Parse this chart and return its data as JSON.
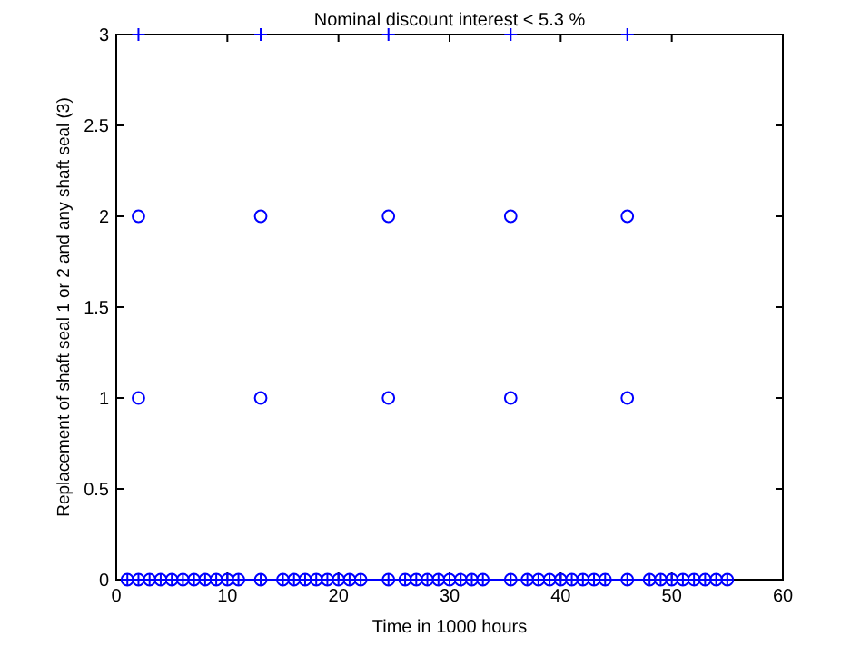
{
  "chart_data": {
    "type": "scatter",
    "title": "Nominal discount interest < 5.3 %",
    "xlabel": "Time in 1000 hours",
    "ylabel": "Replacement of shaft seal 1 or 2 and any shaft seal (3)",
    "xlim": [
      0,
      60
    ],
    "xticks": [
      0,
      10,
      20,
      30,
      40,
      50,
      60
    ],
    "ylim": [
      0,
      3
    ],
    "yticks": [
      0,
      0.5,
      1,
      1.5,
      2,
      2.5,
      3
    ],
    "grid": false,
    "series": [
      {
        "type": "line",
        "color": "#0000ff",
        "marker": "cross",
        "x": [
          1,
          2,
          3,
          4,
          5,
          6,
          7,
          8,
          9,
          10,
          11,
          13,
          15,
          16,
          17,
          18,
          19,
          20,
          21,
          22,
          24.5,
          26,
          27,
          28,
          29,
          30,
          31,
          32,
          33,
          35.5,
          37,
          38,
          39,
          40,
          41,
          42,
          43,
          44,
          46,
          48,
          49,
          50,
          51,
          52,
          53,
          54,
          55
        ],
        "values": [
          0,
          0,
          0,
          0,
          0,
          0,
          0,
          0,
          0,
          0,
          0,
          0,
          0,
          0,
          0,
          0,
          0,
          0,
          0,
          0,
          0,
          0,
          0,
          0,
          0,
          0,
          0,
          0,
          0,
          0,
          0,
          0,
          0,
          0,
          0,
          0,
          0,
          0,
          0,
          0,
          0,
          0,
          0,
          0,
          0,
          0,
          0
        ]
      },
      {
        "color": "#0000ff",
        "marker": "circle",
        "x": [
          1,
          2,
          3,
          4,
          5,
          6,
          7,
          8,
          9,
          10,
          11,
          13,
          15,
          16,
          17,
          18,
          19,
          20,
          21,
          22,
          24.5,
          26,
          27,
          28,
          29,
          30,
          31,
          32,
          33,
          35.5,
          37,
          38,
          39,
          40,
          41,
          42,
          43,
          44,
          46,
          48,
          49,
          50,
          51,
          52,
          53,
          54,
          55
        ],
        "values": [
          0,
          0,
          0,
          0,
          0,
          0,
          0,
          0,
          0,
          0,
          0,
          0,
          0,
          0,
          0,
          0,
          0,
          0,
          0,
          0,
          0,
          0,
          0,
          0,
          0,
          0,
          0,
          0,
          0,
          0,
          0,
          0,
          0,
          0,
          0,
          0,
          0,
          0,
          0,
          0,
          0,
          0,
          0,
          0,
          0,
          0,
          0
        ]
      },
      {
        "color": "#0000ff",
        "marker": "circle",
        "x": [
          2,
          13,
          24.5,
          35.5,
          46,
          2,
          13,
          24.5,
          35.5,
          46
        ],
        "values": [
          1,
          1,
          1,
          1,
          1,
          2,
          2,
          2,
          2,
          2
        ]
      },
      {
        "color": "#0000ff",
        "marker": "cross",
        "x": [
          2,
          13,
          24.5,
          35.5,
          46
        ],
        "values": [
          3,
          3,
          3,
          3,
          3
        ]
      }
    ]
  }
}
